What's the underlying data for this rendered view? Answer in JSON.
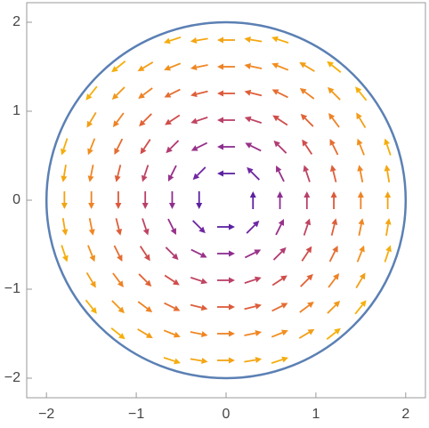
{
  "chart_data": {
    "type": "vector_field",
    "xlim": [
      -2.22,
      2.22
    ],
    "ylim": [
      -2.22,
      2.22
    ],
    "xticks": [
      {
        "value": -2,
        "label": "−2"
      },
      {
        "value": -1,
        "label": "−1"
      },
      0,
      1,
      2
    ],
    "yticks": [
      {
        "value": -2,
        "label": "−2"
      },
      {
        "value": -1,
        "label": "−1"
      },
      0,
      1,
      2
    ],
    "circle": {
      "radius": 2,
      "color": "#5b80b4"
    },
    "colors": [
      "#24168f",
      "#6a24a6",
      "#a8357f",
      "#d9533f",
      "#f08722",
      "#f5b00c"
    ],
    "arrows": [
      [
        -0.6,
        1.8,
        -1.8,
        -0.6
      ],
      [
        -0.3,
        1.8,
        -1.8,
        -0.3
      ],
      [
        0,
        1.8,
        -1.8,
        0
      ],
      [
        0.3,
        1.8,
        -1.8,
        0.3
      ],
      [
        0.6,
        1.8,
        -1.8,
        0.6
      ],
      [
        -1.2,
        1.5,
        -1.5,
        -1.2
      ],
      [
        -0.9,
        1.5,
        -1.5,
        -0.9
      ],
      [
        -0.6,
        1.5,
        -1.5,
        -0.6
      ],
      [
        -0.3,
        1.5,
        -1.5,
        -0.3
      ],
      [
        0,
        1.5,
        -1.5,
        0
      ],
      [
        0.3,
        1.5,
        -1.5,
        0.3
      ],
      [
        0.6,
        1.5,
        -1.5,
        0.6
      ],
      [
        0.9,
        1.5,
        -1.5,
        0.9
      ],
      [
        1.2,
        1.5,
        -1.5,
        1.2
      ],
      [
        -1.5,
        1.2,
        -1.2,
        -1.5
      ],
      [
        -1.2,
        1.2,
        -1.2,
        -1.2
      ],
      [
        -0.9,
        1.2,
        -1.2,
        -0.9
      ],
      [
        -0.6,
        1.2,
        -1.2,
        -0.6
      ],
      [
        -0.3,
        1.2,
        -1.2,
        -0.3
      ],
      [
        0,
        1.2,
        -1.2,
        0
      ],
      [
        0.3,
        1.2,
        -1.2,
        0.3
      ],
      [
        0.6,
        1.2,
        -1.2,
        0.6
      ],
      [
        0.9,
        1.2,
        -1.2,
        0.9
      ],
      [
        1.2,
        1.2,
        -1.2,
        1.2
      ],
      [
        1.5,
        1.2,
        -1.2,
        1.5
      ],
      [
        -1.5,
        0.9,
        -0.9,
        -1.5
      ],
      [
        -1.2,
        0.9,
        -0.9,
        -1.2
      ],
      [
        -0.9,
        0.9,
        -0.9,
        -0.9
      ],
      [
        -0.6,
        0.9,
        -0.9,
        -0.6
      ],
      [
        -0.3,
        0.9,
        -0.9,
        -0.3
      ],
      [
        0,
        0.9,
        -0.9,
        0
      ],
      [
        0.3,
        0.9,
        -0.9,
        0.3
      ],
      [
        0.6,
        0.9,
        -0.9,
        0.6
      ],
      [
        0.9,
        0.9,
        -0.9,
        0.9
      ],
      [
        1.2,
        0.9,
        -0.9,
        1.2
      ],
      [
        1.5,
        0.9,
        -0.9,
        1.5
      ],
      [
        -1.8,
        0.6,
        -0.6,
        -1.8
      ],
      [
        -1.5,
        0.6,
        -0.6,
        -1.5
      ],
      [
        -1.2,
        0.6,
        -0.6,
        -1.2
      ],
      [
        -0.9,
        0.6,
        -0.6,
        -0.9
      ],
      [
        -0.6,
        0.6,
        -0.6,
        -0.6
      ],
      [
        -0.3,
        0.6,
        -0.6,
        -0.3
      ],
      [
        0,
        0.6,
        -0.6,
        0
      ],
      [
        0.3,
        0.6,
        -0.6,
        0.3
      ],
      [
        0.6,
        0.6,
        -0.6,
        0.6
      ],
      [
        0.9,
        0.6,
        -0.6,
        0.9
      ],
      [
        1.2,
        0.6,
        -0.6,
        1.2
      ],
      [
        1.5,
        0.6,
        -0.6,
        1.5
      ],
      [
        1.8,
        0.6,
        -0.6,
        1.8
      ],
      [
        -1.8,
        0.3,
        -0.3,
        -1.8
      ],
      [
        -1.5,
        0.3,
        -0.3,
        -1.5
      ],
      [
        -1.2,
        0.3,
        -0.3,
        -1.2
      ],
      [
        -0.9,
        0.3,
        -0.3,
        -0.9
      ],
      [
        -0.6,
        0.3,
        -0.3,
        -0.6
      ],
      [
        -0.3,
        0.3,
        -0.3,
        -0.3
      ],
      [
        0,
        0.3,
        -0.3,
        0
      ],
      [
        0.3,
        0.3,
        -0.3,
        0.3
      ],
      [
        0.6,
        0.3,
        -0.3,
        0.6
      ],
      [
        0.9,
        0.3,
        -0.3,
        0.9
      ],
      [
        1.2,
        0.3,
        -0.3,
        1.2
      ],
      [
        1.5,
        0.3,
        -0.3,
        1.5
      ],
      [
        1.8,
        0.3,
        -0.3,
        1.8
      ],
      [
        -1.8,
        0,
        0,
        -1.8
      ],
      [
        -1.5,
        0,
        0,
        -1.5
      ],
      [
        -1.2,
        0,
        0,
        -1.2
      ],
      [
        -0.9,
        0,
        0,
        -0.9
      ],
      [
        -0.6,
        0,
        0,
        -0.6
      ],
      [
        -0.3,
        0,
        0,
        -0.3
      ],
      [
        0.3,
        0,
        0,
        0.3
      ],
      [
        0.6,
        0,
        0,
        0.6
      ],
      [
        0.9,
        0,
        0,
        0.9
      ],
      [
        1.2,
        0,
        0,
        1.2
      ],
      [
        1.5,
        0,
        0,
        1.5
      ],
      [
        1.8,
        0,
        0,
        1.8
      ],
      [
        -1.8,
        -0.3,
        0.3,
        -1.8
      ],
      [
        -1.5,
        -0.3,
        0.3,
        -1.5
      ],
      [
        -1.2,
        -0.3,
        0.3,
        -1.2
      ],
      [
        -0.9,
        -0.3,
        0.3,
        -0.9
      ],
      [
        -0.6,
        -0.3,
        0.3,
        -0.6
      ],
      [
        -0.3,
        -0.3,
        0.3,
        -0.3
      ],
      [
        0,
        -0.3,
        0.3,
        0
      ],
      [
        0.3,
        -0.3,
        0.3,
        0.3
      ],
      [
        0.6,
        -0.3,
        0.3,
        0.6
      ],
      [
        0.9,
        -0.3,
        0.3,
        0.9
      ],
      [
        1.2,
        -0.3,
        0.3,
        1.2
      ],
      [
        1.5,
        -0.3,
        0.3,
        1.5
      ],
      [
        1.8,
        -0.3,
        0.3,
        1.8
      ],
      [
        -1.8,
        -0.6,
        0.6,
        -1.8
      ],
      [
        -1.5,
        -0.6,
        0.6,
        -1.5
      ],
      [
        -1.2,
        -0.6,
        0.6,
        -1.2
      ],
      [
        -0.9,
        -0.6,
        0.6,
        -0.9
      ],
      [
        -0.6,
        -0.6,
        0.6,
        -0.6
      ],
      [
        -0.3,
        -0.6,
        0.6,
        -0.3
      ],
      [
        0,
        -0.6,
        0.6,
        0
      ],
      [
        0.3,
        -0.6,
        0.6,
        0.3
      ],
      [
        0.6,
        -0.6,
        0.6,
        0.6
      ],
      [
        0.9,
        -0.6,
        0.6,
        0.9
      ],
      [
        1.2,
        -0.6,
        0.6,
        1.2
      ],
      [
        1.5,
        -0.6,
        0.6,
        1.5
      ],
      [
        1.8,
        -0.6,
        0.6,
        1.8
      ],
      [
        -1.5,
        -0.9,
        0.9,
        -1.5
      ],
      [
        -1.2,
        -0.9,
        0.9,
        -1.2
      ],
      [
        -0.9,
        -0.9,
        0.9,
        -0.9
      ],
      [
        -0.6,
        -0.9,
        0.9,
        -0.6
      ],
      [
        -0.3,
        -0.9,
        0.9,
        -0.3
      ],
      [
        0,
        -0.9,
        0.9,
        0
      ],
      [
        0.3,
        -0.9,
        0.9,
        0.3
      ],
      [
        0.6,
        -0.9,
        0.9,
        0.6
      ],
      [
        0.9,
        -0.9,
        0.9,
        0.9
      ],
      [
        1.2,
        -0.9,
        0.9,
        1.2
      ],
      [
        1.5,
        -0.9,
        0.9,
        1.5
      ],
      [
        -1.5,
        -1.2,
        1.2,
        -1.5
      ],
      [
        -1.2,
        -1.2,
        1.2,
        -1.2
      ],
      [
        -0.9,
        -1.2,
        1.2,
        -0.9
      ],
      [
        -0.6,
        -1.2,
        1.2,
        -0.6
      ],
      [
        -0.3,
        -1.2,
        1.2,
        -0.3
      ],
      [
        0,
        -1.2,
        1.2,
        0
      ],
      [
        0.3,
        -1.2,
        1.2,
        0.3
      ],
      [
        0.6,
        -1.2,
        1.2,
        0.6
      ],
      [
        0.9,
        -1.2,
        1.2,
        0.9
      ],
      [
        1.2,
        -1.2,
        1.2,
        1.2
      ],
      [
        1.5,
        -1.2,
        1.2,
        1.5
      ],
      [
        -1.2,
        -1.5,
        1.5,
        -1.2
      ],
      [
        -0.9,
        -1.5,
        1.5,
        -0.9
      ],
      [
        -0.6,
        -1.5,
        1.5,
        -0.6
      ],
      [
        -0.3,
        -1.5,
        1.5,
        -0.3
      ],
      [
        0,
        -1.5,
        1.5,
        0
      ],
      [
        0.3,
        -1.5,
        1.5,
        0.3
      ],
      [
        0.6,
        -1.5,
        1.5,
        0.6
      ],
      [
        0.9,
        -1.5,
        1.5,
        0.9
      ],
      [
        1.2,
        -1.5,
        1.5,
        1.2
      ],
      [
        -0.6,
        -1.8,
        1.8,
        -0.6
      ],
      [
        -0.3,
        -1.8,
        1.8,
        -0.3
      ],
      [
        0,
        -1.8,
        1.8,
        0
      ],
      [
        0.3,
        -1.8,
        1.8,
        0.3
      ],
      [
        0.6,
        -1.8,
        1.8,
        0.6
      ]
    ]
  }
}
